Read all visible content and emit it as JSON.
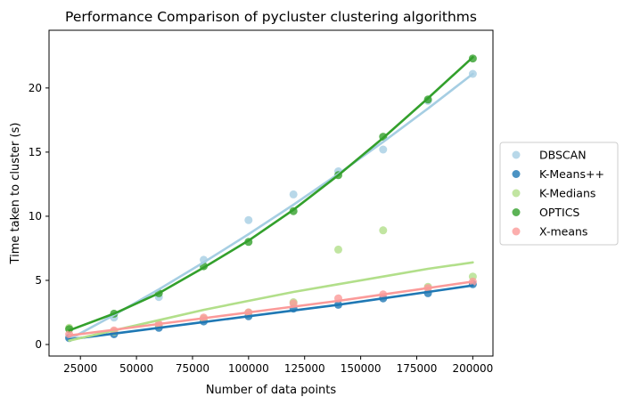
{
  "chart_data": {
    "type": "scatter",
    "title": "Performance Comparison of pycluster clustering algorithms",
    "xlabel": "Number of data points",
    "ylabel": "Time taken to cluster (s)",
    "xlim": [
      11000,
      209000
    ],
    "ylim": [
      -0.9,
      24.5
    ],
    "xticks": [
      25000,
      50000,
      75000,
      100000,
      125000,
      150000,
      175000,
      200000
    ],
    "yticks": [
      0,
      5,
      10,
      15,
      20
    ],
    "grid": false,
    "legend_position": "right",
    "x": [
      20000,
      40000,
      60000,
      80000,
      100000,
      120000,
      140000,
      160000,
      180000,
      200000
    ],
    "series": [
      {
        "name": "DBSCAN",
        "color": "#a6cee3",
        "values": [
          0.6,
          2.1,
          3.7,
          6.6,
          9.7,
          11.7,
          13.5,
          15.2,
          19.0,
          21.1
        ],
        "fit": [
          [
            20000,
            0.4
          ],
          [
            40000,
            2.3
          ],
          [
            60000,
            4.3
          ],
          [
            80000,
            6.4
          ],
          [
            100000,
            8.6
          ],
          [
            120000,
            10.9
          ],
          [
            140000,
            13.3
          ],
          [
            160000,
            15.8
          ],
          [
            180000,
            18.4
          ],
          [
            200000,
            21.1
          ]
        ]
      },
      {
        "name": "K-Means++",
        "color": "#1f78b4",
        "values": [
          0.5,
          0.8,
          1.3,
          1.8,
          2.2,
          2.8,
          3.1,
          3.6,
          4.0,
          4.7
        ],
        "fit": [
          [
            20000,
            0.4
          ],
          [
            40000,
            0.85
          ],
          [
            60000,
            1.3
          ],
          [
            80000,
            1.75
          ],
          [
            100000,
            2.2
          ],
          [
            120000,
            2.65
          ],
          [
            140000,
            3.1
          ],
          [
            160000,
            3.6
          ],
          [
            180000,
            4.1
          ],
          [
            200000,
            4.6
          ]
        ]
      },
      {
        "name": "K-Medians",
        "color": "#b2df8a",
        "values": [
          1.3,
          1.0,
          1.5,
          2.0,
          2.5,
          3.3,
          7.4,
          8.9,
          4.5,
          5.3
        ],
        "fit": [
          [
            20000,
            0.3
          ],
          [
            40000,
            1.1
          ],
          [
            60000,
            1.9
          ],
          [
            80000,
            2.7
          ],
          [
            100000,
            3.4
          ],
          [
            120000,
            4.1
          ],
          [
            140000,
            4.7
          ],
          [
            160000,
            5.3
          ],
          [
            180000,
            5.9
          ],
          [
            200000,
            6.4
          ]
        ]
      },
      {
        "name": "OPTICS",
        "color": "#33a02c",
        "values": [
          1.2,
          2.4,
          4.0,
          6.1,
          8.0,
          10.4,
          13.2,
          16.2,
          19.1,
          22.3
        ],
        "fit": [
          [
            20000,
            1.1
          ],
          [
            40000,
            2.4
          ],
          [
            60000,
            4.0
          ],
          [
            80000,
            6.0
          ],
          [
            100000,
            8.1
          ],
          [
            120000,
            10.5
          ],
          [
            140000,
            13.2
          ],
          [
            160000,
            16.1
          ],
          [
            180000,
            19.2
          ],
          [
            200000,
            22.4
          ]
        ]
      },
      {
        "name": "X-means",
        "color": "#fb9a99",
        "values": [
          0.8,
          1.1,
          1.6,
          2.1,
          2.5,
          3.2,
          3.6,
          3.9,
          4.4,
          4.9
        ],
        "fit": [
          [
            20000,
            0.7
          ],
          [
            40000,
            1.15
          ],
          [
            60000,
            1.6
          ],
          [
            80000,
            2.05
          ],
          [
            100000,
            2.5
          ],
          [
            120000,
            2.95
          ],
          [
            140000,
            3.4
          ],
          [
            160000,
            3.9
          ],
          [
            180000,
            4.4
          ],
          [
            200000,
            4.9
          ]
        ]
      }
    ]
  }
}
